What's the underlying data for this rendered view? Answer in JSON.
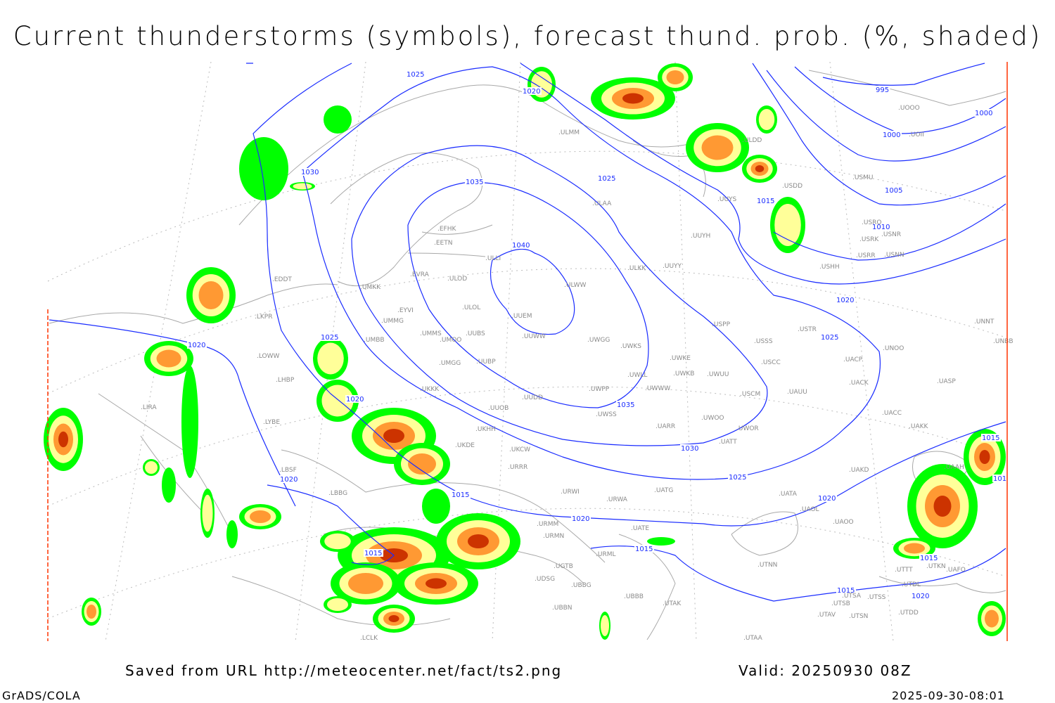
{
  "title": "Current thunderstorms (symbols), forecast thund. prob. (%, shaded)",
  "footer": {
    "saved_from": "Saved from URL http://meteocenter.net/fact/ts2.png",
    "valid": "Valid: 20250930 08Z",
    "software": "GrADS/COLA",
    "timestamp": "2025-09-30-08:01"
  },
  "colors": {
    "isobar": "#1a2cff",
    "coastline": "#a8a8a8",
    "prob_low": "#00ff00",
    "prob_mid": "#ffff99",
    "prob_high": "#ff9933",
    "prob_max": "#cc3300",
    "border": "#ff3300"
  },
  "isobar_labels": [
    "1025",
    "1020",
    "1030",
    "1035",
    "1040",
    "1025",
    "995",
    "1000",
    "1000",
    "1005",
    "1010",
    "1015",
    "1020",
    "1025",
    "1035",
    "1030",
    "1025",
    "1020",
    "1020",
    "1015",
    "1015",
    "1020",
    "1015",
    "1015",
    "101",
    "1020",
    "1025",
    "1020",
    "1020",
    "1015",
    "1015"
  ],
  "stations": [
    "EFHK",
    "EETN",
    "EVRA",
    "ULOD",
    "ULOL",
    "EYVI",
    "UMMG",
    "UMMS",
    "UMOO",
    "UUBS",
    "UMBB",
    "EDDT",
    "UMKK",
    "LKPR",
    "LOWW",
    "LHBP",
    "LIRA",
    "LYBE",
    "LBSF",
    "LBBG",
    "UKKK",
    "UKHH",
    "UKDE",
    "UUOB",
    "UUDD",
    "UUBP",
    "UMGG",
    "UUEM",
    "UUWW",
    "ULWW",
    "UWGG",
    "UWKS",
    "UWKE",
    "UWKB",
    "UWUU",
    "UWLL",
    "UWWW",
    "UWPP",
    "UWSS",
    "URWI",
    "URWA",
    "UATG",
    "UATT",
    "UWOR",
    "UWOO",
    "UARR",
    "URRR",
    "UKCW",
    "URMM",
    "URMN",
    "UBBG",
    "UBBN",
    "UGTB",
    "UDSG",
    "UTAK",
    "UBBB",
    "URML",
    "UATE",
    "UATA",
    "UAOL",
    "UAOO",
    "UTNN",
    "UTSA",
    "UTSS",
    "UTSB",
    "UTAV",
    "UTSN",
    "UTDD",
    "UTDL",
    "UTTT",
    "UTKN",
    "UAFO",
    "UTAA",
    "LCLK",
    "UAAH",
    "UAKD",
    "UAKK",
    "UACC",
    "UASP",
    "UACK",
    "UACP",
    "UNOO",
    "UNBB",
    "UNNT",
    "USCC",
    "USSS",
    "USTR",
    "USCM",
    "UAUU",
    "USPP",
    "UUYY",
    "ULKK",
    "UUYH",
    "UUYS",
    "ULAA",
    "ULMM",
    "ULDD",
    "USDD",
    "USMU",
    "USRO",
    "USNR",
    "USRK",
    "USRR",
    "USNN",
    "USHH",
    "UOOO",
    "UOII",
    "ULLI"
  ]
}
